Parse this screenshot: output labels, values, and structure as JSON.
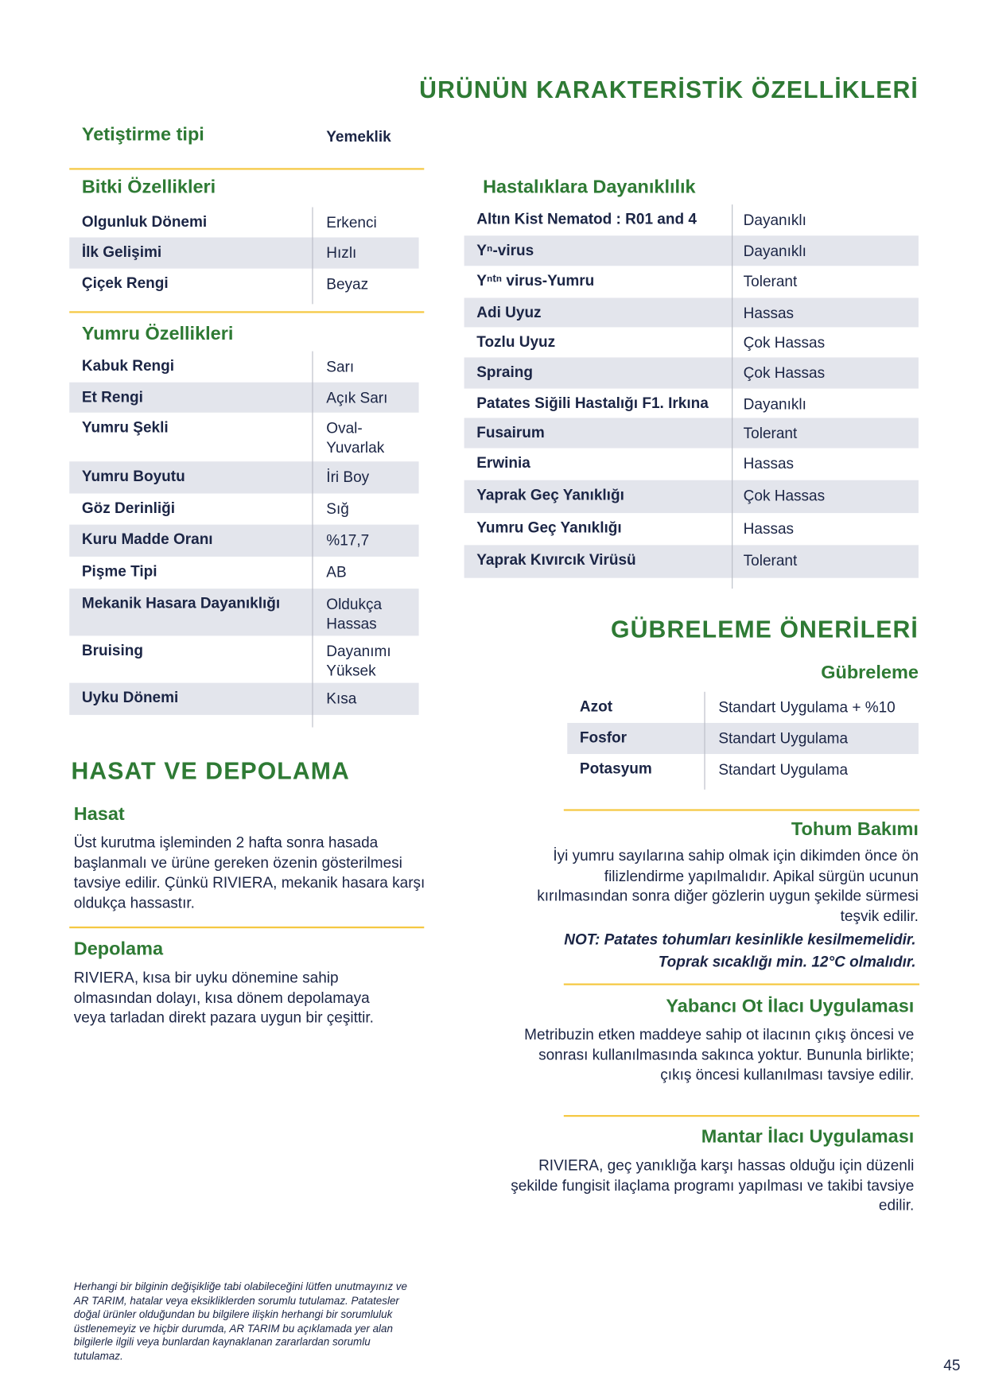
{
  "title": "ÜRÜNÜN KARAKTERİSTİK ÖZELLİKLERİ",
  "cultivation": {
    "label": "Yetiştirme tipi",
    "value": "Yemeklik"
  },
  "plant": {
    "heading": "Bitki Özellikleri",
    "rows": [
      {
        "label": "Olgunluk Dönemi",
        "value": "Erkenci"
      },
      {
        "label": "İlk Gelişimi",
        "value": "Hızlı"
      },
      {
        "label": "Çiçek Rengi",
        "value": "Beyaz"
      }
    ]
  },
  "tuber": {
    "heading": "Yumru Özellikleri",
    "rows": [
      {
        "label": "Kabuk Rengi",
        "value": "Sarı"
      },
      {
        "label": "Et Rengi",
        "value": "Açık Sarı"
      },
      {
        "label": "Yumru Şekli",
        "value": "Oval-Yuvarlak"
      },
      {
        "label": "Yumru Boyutu",
        "value": "İri Boy"
      },
      {
        "label": "Göz Derinliği",
        "value": "Sığ"
      },
      {
        "label": "Kuru Madde Oranı",
        "value": "%17,7"
      },
      {
        "label": "Pişme Tipi",
        "value": "AB"
      },
      {
        "label": "Mekanik Hasara Dayanıklığı",
        "value": "Oldukça Hassas"
      },
      {
        "label": "Bruising",
        "value": "Dayanımı Yüksek"
      },
      {
        "label": "Uyku Dönemi",
        "value": "Kısa"
      }
    ]
  },
  "disease": {
    "heading": "Hastalıklara Dayanıklılık",
    "rows": [
      {
        "label": "Altın Kist Nematod : R01 and 4",
        "value": "Dayanıklı"
      },
      {
        "label": "Yⁿ-virus",
        "value": "Dayanıklı"
      },
      {
        "label": "Yⁿᵗⁿ virus-Yumru",
        "value": "Tolerant"
      },
      {
        "label": "Adi Uyuz",
        "value": "Hassas"
      },
      {
        "label": "Tozlu Uyuz",
        "value": "Çok Hassas"
      },
      {
        "label": "Spraing",
        "value": "Çok Hassas"
      },
      {
        "label": "Patates Siğili Hastalığı F1. Irkına",
        "value": "Dayanıklı"
      },
      {
        "label": "Fusairum",
        "value": "Tolerant"
      },
      {
        "label": "Erwinia",
        "value": "Hassas"
      },
      {
        "label": "Yaprak Geç Yanıklığı",
        "value": "Çok Hassas"
      },
      {
        "label": "Yumru Geç Yanıklığı",
        "value": "Hassas"
      },
      {
        "label": "Yaprak Kıvırcık Virüsü",
        "value": "Tolerant"
      }
    ]
  },
  "fert": {
    "title": "GÜBRELEME ÖNERİLERİ",
    "heading": "Gübreleme",
    "rows": [
      {
        "label": "Azot",
        "value": "Standart Uygulama + %10"
      },
      {
        "label": "Fosfor",
        "value": "Standart Uygulama"
      },
      {
        "label": "Potasyum",
        "value": "Standart Uygulama"
      }
    ]
  },
  "harvest": {
    "title": "HASAT VE DEPOLAMA",
    "hasat_heading": "Hasat",
    "hasat_text": "Üst kurutma işleminden 2 hafta sonra hasada başlanmalı ve ürüne gereken özenin gösterilmesi tavsiye edilir. Çünkü RIVIERA, mekanik hasara karşı oldukça hassastır.",
    "depo_heading": "Depolama",
    "depo_text": "RIVIERA, kısa bir uyku dönemine sahip olmasından dolayı, kısa dönem depolamaya veya tarladan direkt pazara uygun bir çeşittir."
  },
  "seed": {
    "heading": "Tohum Bakımı",
    "text": "İyi yumru sayılarına sahip olmak için dikimden önce ön filizlendirme yapılmalıdır. Apikal sürgün ucunun kırılmasından sonra diğer gözlerin uygun şekilde sürmesi teşvik edilir.",
    "note1": "NOT: Patates tohumları kesinlikle kesilmemelidir.",
    "note2": "Toprak sıcaklığı min. 12°C olmalıdır."
  },
  "herbicide": {
    "heading": "Yabancı Ot İlacı Uygulaması",
    "text": "Metribuzin etken maddeye sahip ot ilacının çıkış öncesi ve sonrası kullanılmasında sakınca yoktur. Bununla birlikte; çıkış öncesi kullanılması tavsiye edilir."
  },
  "fungicide": {
    "heading": "Mantar İlacı Uygulaması",
    "text": "RIVIERA, geç yanıklığa karşı hassas olduğu için düzenli şekilde fungisit ilaçlama programı yapılması ve takibi tavsiye edilir."
  },
  "footnote": "Herhangi bir bilginin değişikliğe tabi olabileceğini lütfen unutmayınız ve AR TARIM, hatalar veya eksikliklerden sorumlu tutulamaz. Patatesler doğal ürünler olduğundan bu bilgilere ilişkin herhangi bir sorumluluk üstlenemeyiz  ve hiçbir durumda, AR TARIM bu açıklamada yer alan bilgilerle ilgili veya bunlardan kaynaklanan zararlardan sorumlu tutulamaz.",
  "page_number": "45",
  "colors": {
    "green": "#2e7a34",
    "navy": "#1b2545",
    "shade": "#e3e5ec",
    "rule": "#f5c842"
  }
}
